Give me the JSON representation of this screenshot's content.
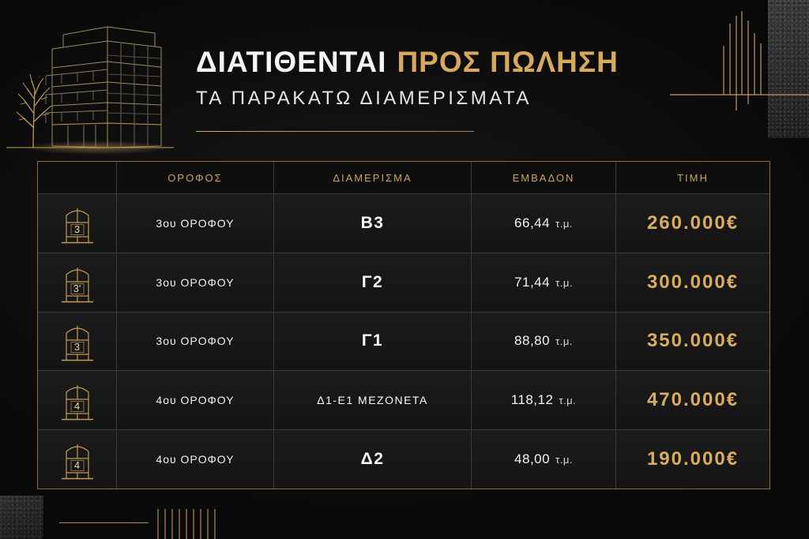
{
  "header": {
    "title_main": "ΔΙΑΤΙΘΕΝΤΑΙ",
    "title_accent": "ΠΡΟΣ ΠΩΛΗΣΗ",
    "subtitle": "ΤΑ ΠΑΡΑΚΑΤΩ ΔΙΑΜΕΡΙΣΜΑΤΑ"
  },
  "icons": {
    "illustration": "building-illustration-icon",
    "row_icon": "building-floor-icon"
  },
  "colors": {
    "background": "#0c0c0c",
    "gold": "#d6a95c",
    "text": "#ffffff",
    "row_background": "#171717",
    "grid_line": "#3b3b3b",
    "table_border": "#8a6d3b"
  },
  "table": {
    "headers": {
      "floor": "ΟΡΟΦΟΣ",
      "apartment": "ΔΙΑΜΕΡΙΣΜΑ",
      "area": "ΕΜΒΑΔΟΝ",
      "price": "ΤΙΜΗ"
    },
    "rows": [
      {
        "icon_label": "3",
        "floor": "3ου ΟΡΟΦΟΥ",
        "apartment": "Β3",
        "area": "66,44",
        "area_unit": "τ.μ.",
        "price": "260.000€"
      },
      {
        "icon_label": "3'",
        "floor": "3ου ΟΡΟΦΟΥ",
        "apartment": "Γ2",
        "area": "71,44",
        "area_unit": "τ.μ.",
        "price": "300.000€"
      },
      {
        "icon_label": "3",
        "floor": "3ου ΟΡΟΦΟΥ",
        "apartment": "Γ1",
        "area": "88,80",
        "area_unit": "τ.μ.",
        "price": "350.000€"
      },
      {
        "icon_label": "4",
        "floor": "4ου ΟΡΟΦΟΥ",
        "apartment": "Δ1-Ε1 ΜΕΖΟΝΕΤΑ",
        "area": "118,12",
        "area_unit": "τ.μ.",
        "price": "470.000€"
      },
      {
        "icon_label": "4",
        "floor": "4ου ΟΡΟΦΟΥ",
        "apartment": "Δ2",
        "area": "48,00",
        "area_unit": "τ.μ.",
        "price": "190.000€"
      }
    ]
  }
}
